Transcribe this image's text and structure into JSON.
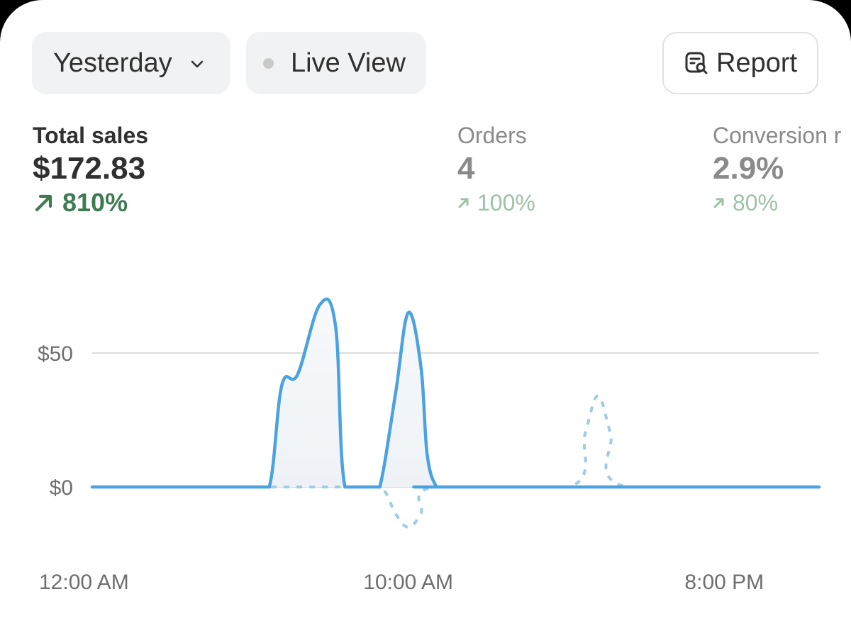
{
  "toolbar": {
    "date_range_label": "Yesterday",
    "live_view_label": "Live View",
    "report_label": "Report"
  },
  "metrics": {
    "sales": {
      "label": "Total sales",
      "value": "$172.83",
      "change": "810%"
    },
    "orders": {
      "label": "Orders",
      "value": "4",
      "change": "100%"
    },
    "conversion": {
      "label": "Conversion r",
      "value": "2.9%",
      "change": "80%"
    }
  },
  "colors": {
    "series_line": "#4ba2e0",
    "comparison_line": "#9ecbe6",
    "positive_change": "#3f7a52",
    "positive_change_muted": "#9cc3a6"
  },
  "chart_data": {
    "type": "line",
    "y_ticks": [
      "$50",
      "$0"
    ],
    "y_tick_values": [
      50,
      0
    ],
    "x_ticks": [
      "12:00 AM",
      "10:00 AM",
      "8:00 PM"
    ],
    "x_tick_hours": [
      0,
      10,
      20
    ],
    "x_range_hours": [
      0,
      23
    ],
    "ylim": [
      -16,
      70
    ],
    "grid": true,
    "series": [
      {
        "style": "solid",
        "x": [
          0,
          5.0,
          5.6,
          6.0,
          6.5,
          7.2,
          7.7,
          8.0,
          8.8,
          9.1,
          9.6,
          10.0,
          10.4,
          10.6,
          10.9,
          11.2,
          23
        ],
        "y": [
          0,
          0,
          0,
          38,
          42,
          68,
          60,
          0,
          0,
          0,
          35,
          65,
          45,
          12,
          0,
          0,
          0
        ]
      },
      {
        "style": "dashed",
        "x": [
          0,
          5.0,
          8.0,
          9.1,
          9.6,
          10.0,
          10.4,
          10.8,
          15.1,
          15.6,
          16.0,
          16.4,
          16.9,
          23
        ],
        "y": [
          0,
          0,
          0,
          0,
          -10,
          -15,
          -10,
          0,
          0,
          20,
          34,
          20,
          0,
          0
        ]
      }
    ]
  }
}
